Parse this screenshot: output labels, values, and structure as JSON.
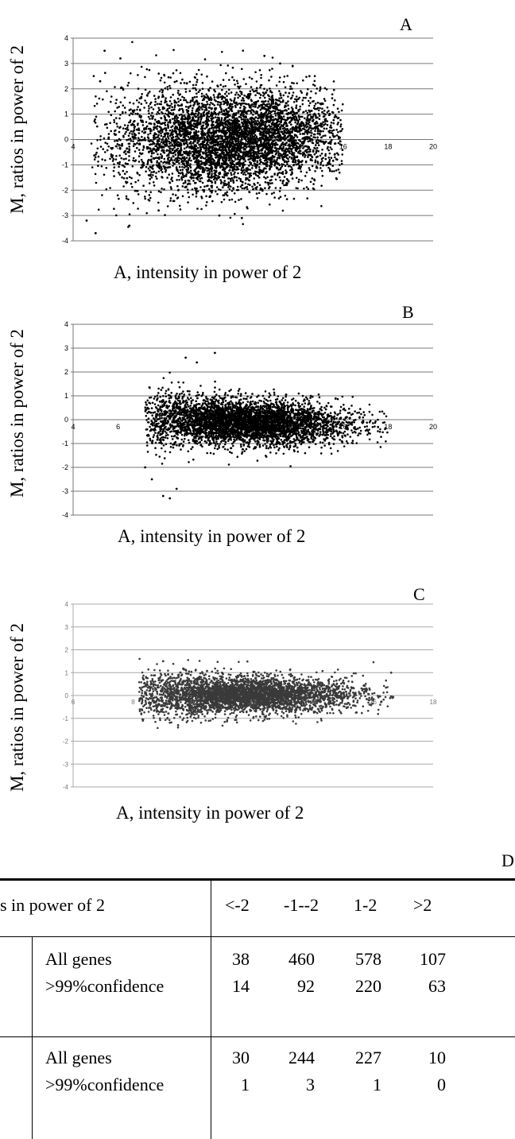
{
  "chart_data": [
    {
      "type": "scatter",
      "panel_label": "A",
      "xlabel": "A, intensity in power of 2",
      "ylabel": "M, ratios in power of 2",
      "xlim": [
        4,
        20
      ],
      "ylim": [
        -4,
        4
      ],
      "x_ticks": [
        "4",
        "6",
        "8",
        "10",
        "12",
        "14",
        "16",
        "18",
        "20"
      ],
      "y_ticks": [
        "4",
        "3",
        "2",
        "1",
        "0",
        "-1",
        "-2",
        "-3",
        "-4"
      ],
      "grid": "horizontal",
      "point_color": "#000000",
      "distribution": {
        "x_center": 11.0,
        "x_spread": 2.6,
        "x_min": 4.8,
        "x_max": 16.0,
        "y_spread": 0.75
      },
      "notable_points": [
        {
          "x": 5.4,
          "y": 3.5
        },
        {
          "x": 6.1,
          "y": 3.2
        },
        {
          "x": 5.2,
          "y": 2.3
        },
        {
          "x": 4.6,
          "y": -3.2
        },
        {
          "x": 5.0,
          "y": -3.7
        },
        {
          "x": 6.5,
          "y": -3.4
        },
        {
          "x": 12.5,
          "y": 3.3
        },
        {
          "x": 13.2,
          "y": 3.0
        },
        {
          "x": 10.5,
          "y": -3.0
        },
        {
          "x": 11.5,
          "y": -3.1
        },
        {
          "x": 7.8,
          "y": -2.8
        },
        {
          "x": 14.5,
          "y": 2.5
        }
      ]
    },
    {
      "type": "scatter",
      "panel_label": "B",
      "xlabel": "A, intensity in power of 2",
      "ylabel": "M, ratios in power of 2",
      "xlim": [
        4,
        20
      ],
      "ylim": [
        -4,
        4
      ],
      "x_ticks": [
        "4",
        "6",
        "8",
        "10",
        "12",
        "14",
        "16",
        "18",
        "20"
      ],
      "y_ticks": [
        "4",
        "3",
        "2",
        "1",
        "0",
        "-1",
        "-2",
        "-3",
        "-4"
      ],
      "grid": "horizontal",
      "point_color": "#000000",
      "distribution": {
        "x_center": 11.5,
        "x_spread": 2.4,
        "x_min": 7.2,
        "x_max": 18.0,
        "y_spread": 0.45
      },
      "notable_points": [
        {
          "x": 10.3,
          "y": 2.8
        },
        {
          "x": 9.0,
          "y": 2.6
        },
        {
          "x": 9.5,
          "y": 2.4
        },
        {
          "x": 8.0,
          "y": -3.2
        },
        {
          "x": 8.3,
          "y": -3.3
        },
        {
          "x": 7.5,
          "y": -2.5
        },
        {
          "x": 7.2,
          "y": -2.0
        },
        {
          "x": 8.6,
          "y": -2.9
        }
      ]
    },
    {
      "type": "scatter",
      "panel_label": "C",
      "xlabel": "A, intensity in power of 2",
      "ylabel": "M, ratios in power of 2",
      "xlim": [
        6,
        18
      ],
      "ylim": [
        -4,
        4
      ],
      "x_ticks": [
        "6",
        "8",
        "10",
        "12",
        "14",
        "16",
        "18"
      ],
      "y_ticks": [
        "4",
        "3",
        "2",
        "1",
        "0",
        "-1",
        "-2",
        "-3",
        "-4"
      ],
      "grid": "horizontal",
      "point_color": "#3a3a3a",
      "distribution": {
        "x_center": 11.6,
        "x_spread": 1.9,
        "x_min": 8.2,
        "x_max": 16.7,
        "y_spread": 0.38
      },
      "notable_points": [
        {
          "x": 9.0,
          "y": 1.5
        },
        {
          "x": 9.5,
          "y": -1.3
        },
        {
          "x": 16.6,
          "y": 1.0
        }
      ]
    },
    {
      "type": "table",
      "panel_label": "D",
      "header_partial": "s in power of 2",
      "columns": [
        "<-2",
        "-1--2",
        "1-2",
        ">2"
      ],
      "groups": [
        {
          "rows": [
            {
              "label": "All genes",
              "values": [
                "38",
                "460",
                "578",
                "107"
              ]
            },
            {
              "label": ">99%confidence",
              "values": [
                "14",
                "92",
                "220",
                "63"
              ]
            }
          ]
        },
        {
          "rows": [
            {
              "label": "All genes",
              "values": [
                "30",
                "244",
                "227",
                "10"
              ]
            },
            {
              "label": ">99%confidence",
              "values": [
                "1",
                "3",
                "1",
                "0"
              ]
            }
          ]
        }
      ]
    }
  ]
}
